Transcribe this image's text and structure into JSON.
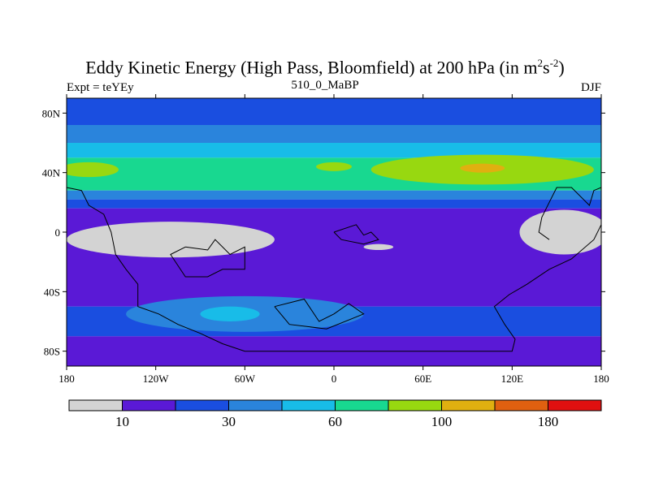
{
  "chart_data": {
    "type": "heatmap",
    "title": "Eddy Kinetic Energy (High Pass, Bloomfield) at 200 hPa (in m",
    "title_units_sup1": "2",
    "title_units_mid": "s",
    "title_units_sup2": "-2",
    "title_units_end": ")",
    "subtitle_left": "Expt = teYEy",
    "subtitle_center": "510_0_MaBP",
    "subtitle_right": "DJF",
    "x_ticks": [
      "180",
      "120W",
      "60W",
      "0",
      "60E",
      "120E",
      "180"
    ],
    "x_tick_values": [
      -180,
      -120,
      -60,
      0,
      60,
      120,
      180
    ],
    "y_ticks": [
      "80N",
      "40N",
      "0",
      "40S",
      "80S"
    ],
    "y_tick_values": [
      80,
      40,
      0,
      -40,
      -80
    ],
    "xlim": [
      -180,
      180
    ],
    "ylim": [
      -90,
      90
    ],
    "colorbar": {
      "levels_shown": [
        "10",
        "30",
        "60",
        "100",
        "180"
      ],
      "colors": [
        "#d3d3d3",
        "#5a19d6",
        "#1a4ee0",
        "#2a84dc",
        "#18bce8",
        "#18d890",
        "#98d810",
        "#e0b010",
        "#e06010",
        "#e01010"
      ]
    },
    "bands": [
      {
        "name": "north-polar",
        "lat": [
          72,
          90
        ],
        "color": "#1a4ee0"
      },
      {
        "name": "north-sub",
        "lat": [
          60,
          72
        ],
        "color": "#2a84dc"
      },
      {
        "name": "north-mid",
        "lat": [
          50,
          60
        ],
        "color": "#18bce8"
      },
      {
        "name": "north-jet-edge",
        "lat": [
          28,
          50
        ],
        "color": "#18d890"
      },
      {
        "name": "north-low",
        "lat": [
          22,
          28
        ],
        "color": "#2a84dc"
      },
      {
        "name": "north-low2",
        "lat": [
          16,
          22
        ],
        "color": "#1a4ee0"
      },
      {
        "name": "tropics",
        "lat": [
          -50,
          16
        ],
        "color": "#5a19d6"
      },
      {
        "name": "south-mid",
        "lat": [
          -70,
          -50
        ],
        "color": "#1a4ee0"
      },
      {
        "name": "south-polar",
        "lat": [
          -90,
          -70
        ],
        "color": "#5a19d6"
      }
    ],
    "regions": [
      {
        "name": "north-jet-core-atlantic",
        "lon": -165,
        "lat": 42,
        "rlon": 20,
        "rlat": 5,
        "color": "#98d810"
      },
      {
        "name": "north-jet-core-pacific",
        "lon": 0,
        "lat": 44,
        "rlon": 12,
        "rlat": 3,
        "color": "#98d810"
      },
      {
        "name": "north-jet-core-asia",
        "lon": 100,
        "lat": 42,
        "rlon": 75,
        "rlat": 10,
        "color": "#98d810"
      },
      {
        "name": "north-jet-max",
        "lon": 100,
        "lat": 43,
        "rlon": 15,
        "rlat": 3,
        "color": "#e0b010"
      },
      {
        "name": "south-jet-outer",
        "lon": -60,
        "lat": -55,
        "rlon": 80,
        "rlat": 12,
        "color": "#2a84dc"
      },
      {
        "name": "south-jet-inner",
        "lon": -70,
        "lat": -55,
        "rlon": 20,
        "rlat": 5,
        "color": "#18bce8"
      },
      {
        "name": "low-eke-west",
        "lon": -110,
        "lat": -5,
        "rlon": 70,
        "rlat": 12,
        "color": "#d3d3d3"
      },
      {
        "name": "low-eke-east",
        "lon": 155,
        "lat": 0,
        "rlon": 30,
        "rlat": 15,
        "color": "#d3d3d3"
      },
      {
        "name": "low-eke-small",
        "lon": 30,
        "lat": -10,
        "rlon": 10,
        "rlat": 2,
        "color": "#d3d3d3"
      }
    ],
    "coastlines": [
      {
        "name": "continent-west-outline",
        "points": [
          [
            -180,
            30
          ],
          [
            -170,
            28
          ],
          [
            -165,
            18
          ],
          [
            -155,
            12
          ],
          [
            -150,
            0
          ],
          [
            -147,
            -15
          ],
          [
            -140,
            -25
          ],
          [
            -132,
            -35
          ],
          [
            -132,
            -50
          ],
          [
            -118,
            -55
          ],
          [
            -105,
            -62
          ],
          [
            -90,
            -68
          ],
          [
            -75,
            -75
          ],
          [
            -60,
            -80
          ],
          [
            -30,
            -80
          ],
          [
            0,
            -80
          ],
          [
            30,
            -80
          ],
          [
            60,
            -80
          ],
          [
            90,
            -80
          ],
          [
            120,
            -80
          ],
          [
            122,
            -72
          ],
          [
            115,
            -62
          ],
          [
            108,
            -50
          ],
          [
            118,
            -42
          ],
          [
            130,
            -35
          ],
          [
            145,
            -25
          ],
          [
            160,
            -18
          ],
          [
            175,
            -5
          ],
          [
            180,
            5
          ]
        ]
      },
      {
        "name": "continent-north-east-outline",
        "points": [
          [
            180,
            30
          ],
          [
            175,
            28
          ],
          [
            172,
            18
          ],
          [
            168,
            22
          ],
          [
            160,
            30
          ],
          [
            150,
            30
          ],
          [
            145,
            20
          ],
          [
            140,
            10
          ],
          [
            138,
            0
          ],
          [
            145,
            -5
          ]
        ]
      },
      {
        "name": "island-center-outline",
        "points": [
          [
            -40,
            -50
          ],
          [
            -20,
            -45
          ],
          [
            -10,
            -60
          ],
          [
            0,
            -55
          ],
          [
            10,
            -48
          ],
          [
            20,
            -55
          ],
          [
            -5,
            -65
          ],
          [
            -30,
            -62
          ],
          [
            -40,
            -50
          ]
        ]
      },
      {
        "name": "tropics-inner-outline",
        "points": [
          [
            -100,
            -10
          ],
          [
            -85,
            -12
          ],
          [
            -80,
            -5
          ],
          [
            -70,
            -15
          ],
          [
            -60,
            -10
          ],
          [
            -60,
            -25
          ],
          [
            -75,
            -25
          ],
          [
            -85,
            -30
          ],
          [
            -100,
            -30
          ],
          [
            -110,
            -15
          ],
          [
            -100,
            -10
          ]
        ]
      },
      {
        "name": "equator-notch-outline",
        "points": [
          [
            0,
            0
          ],
          [
            15,
            5
          ],
          [
            20,
            -2
          ],
          [
            25,
            0
          ],
          [
            30,
            -5
          ],
          [
            20,
            -8
          ],
          [
            5,
            -5
          ],
          [
            0,
            0
          ]
        ]
      }
    ]
  }
}
